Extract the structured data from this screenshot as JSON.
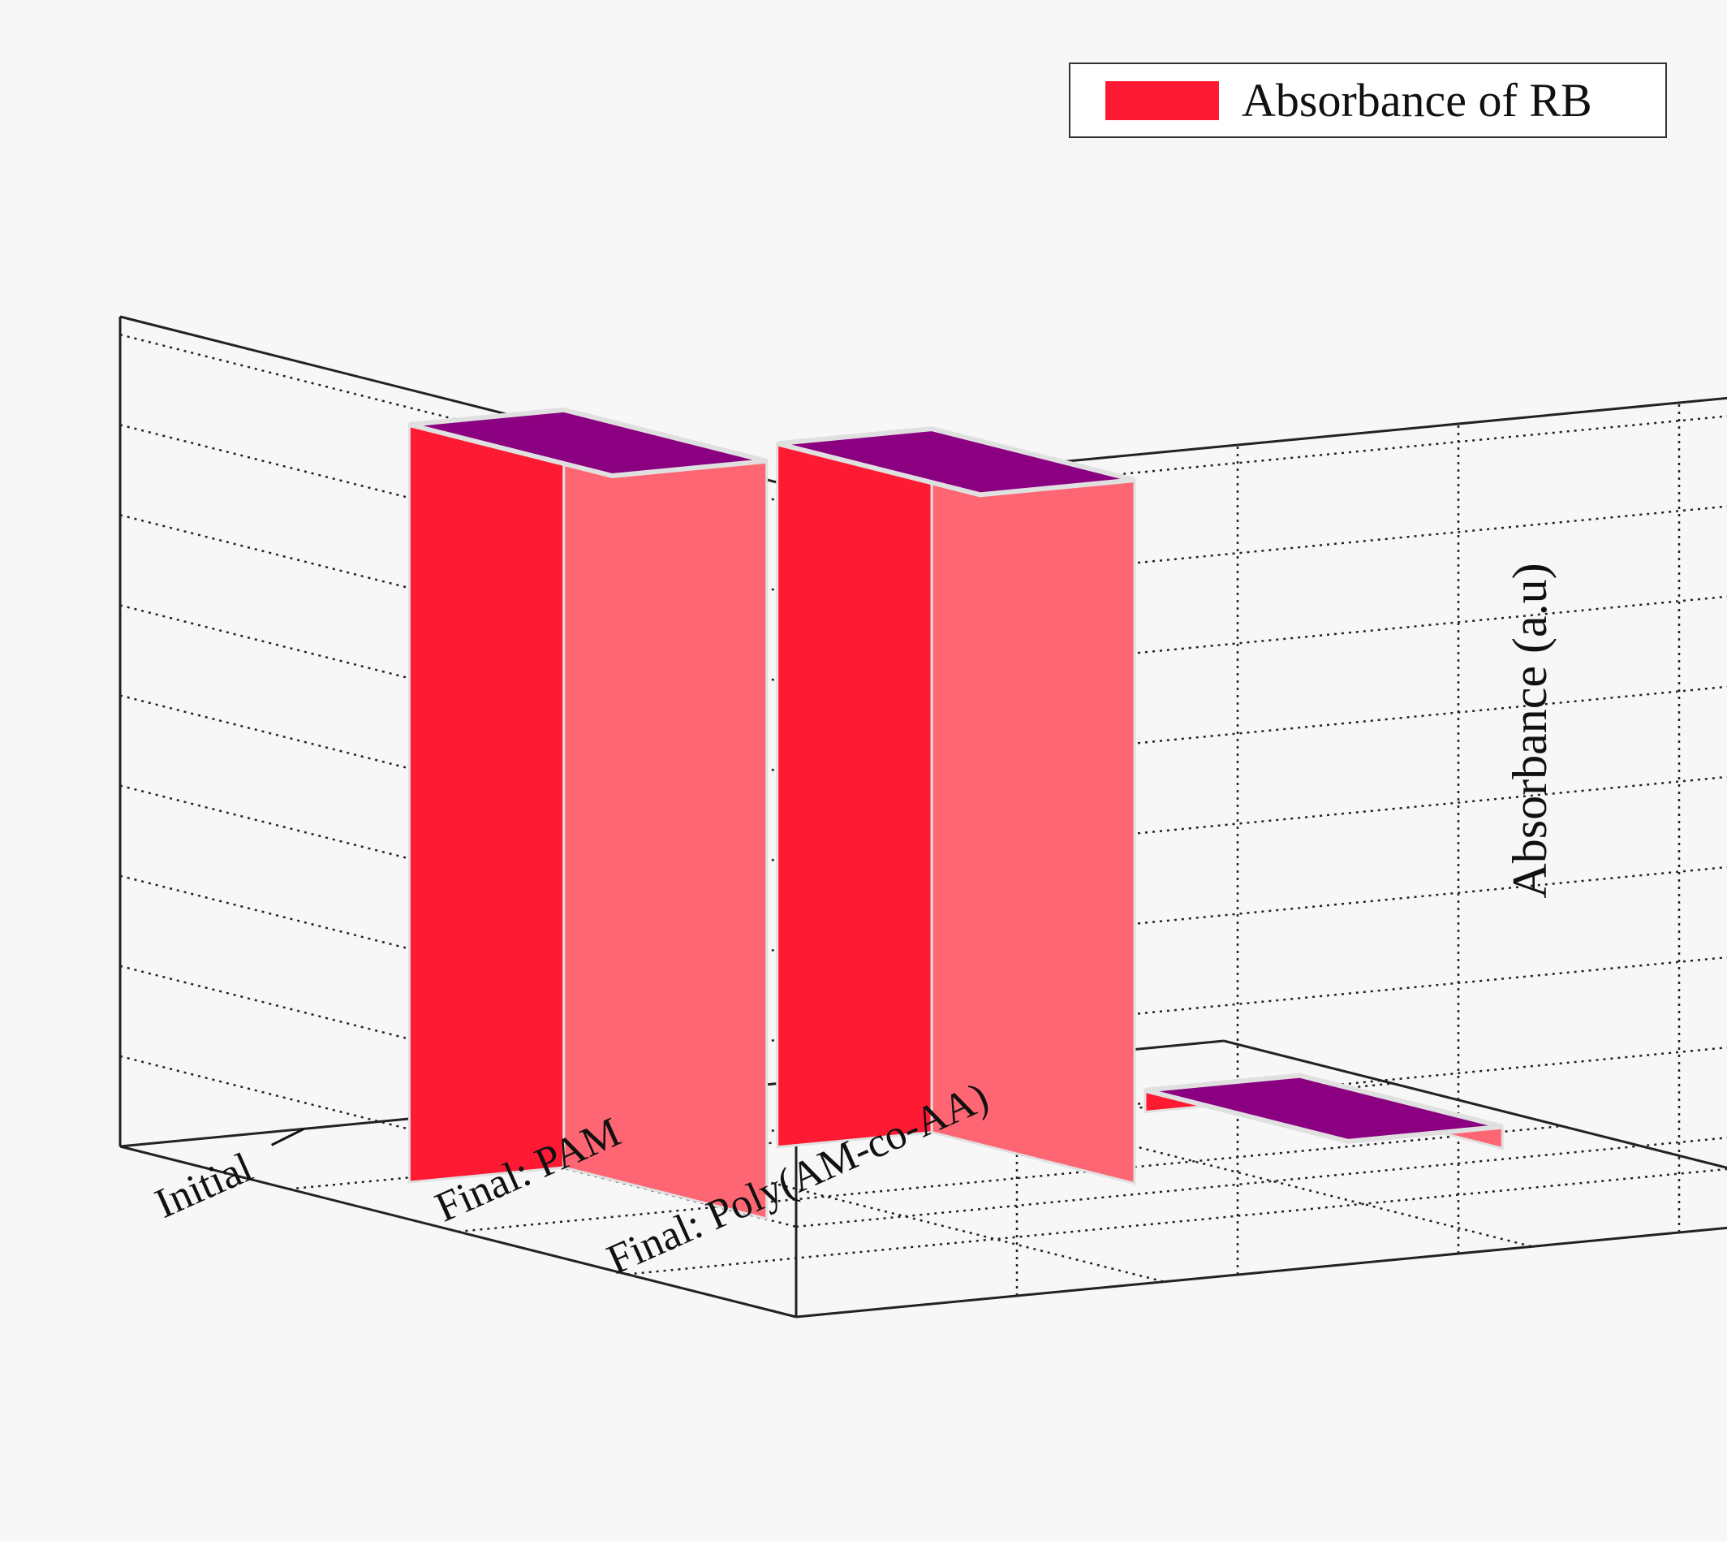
{
  "chart_data": {
    "type": "bar",
    "projection": "3d",
    "categories": [
      "Initial",
      "Final: PAM",
      "Final: Poly(AM-co-AA)"
    ],
    "series": [
      {
        "name": "Absorbance of RB",
        "values": [
          2.1,
          1.95,
          0.06
        ]
      }
    ],
    "ylabel": "Absorbance (a.u)",
    "yticks": [
      "0.0",
      "0.5",
      "1.0",
      "1.5",
      "2.0"
    ],
    "ylim": [
      0,
      2.3
    ],
    "grid": true,
    "legend_position": "top-right",
    "colors": {
      "bar_front": "#ff1a33",
      "bar_side": "#ff6673",
      "bar_top": "#8b0080",
      "edge": "#e0e0e0",
      "background": "#f7f7f7"
    }
  }
}
